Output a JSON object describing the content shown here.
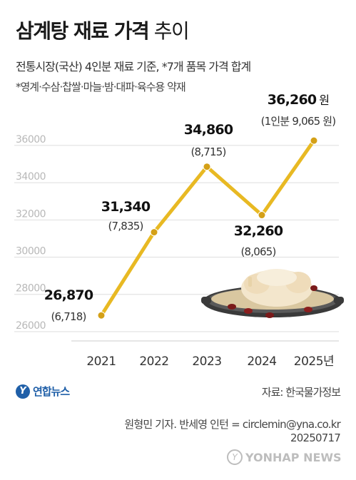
{
  "header": {
    "title_main": "삼계탕 재료 가격",
    "title_suffix": " 추이",
    "subtitle": "전통시장(국산) 4인분 재료 기준, *7개 품목 가격 합계",
    "note": "*영계·수삼·찹쌀·마늘·밤·대파·육수용 약재"
  },
  "chart_data": {
    "type": "line",
    "categories": [
      "2021",
      "2022",
      "2023",
      "2024",
      "2025년"
    ],
    "series": [
      {
        "values": [
          26870,
          31340,
          34860,
          32260,
          36260
        ],
        "value_labels": [
          "26,870",
          "31,340",
          "34,860",
          "32,260",
          "36,260"
        ],
        "value_units": [
          "",
          "",
          "",
          "",
          "원"
        ],
        "per_person_labels": [
          "(6,718)",
          "(7,835)",
          "(8,715)",
          "(8,065)",
          "(1인분 9,065 원)"
        ]
      }
    ],
    "yticks": [
      26000,
      28000,
      30000,
      32000,
      34000,
      36000
    ],
    "ytick_labels": [
      "26000",
      "28000",
      "30000",
      "32000",
      "34000",
      "36000"
    ],
    "ylim": [
      25500,
      37300
    ],
    "grid": true,
    "line_color": "#e8b923"
  },
  "footer": {
    "logo_glyph": "Y",
    "logo_name": "연합뉴스",
    "source": "자료: 한국물가정보",
    "credit_line1": "원형민 기자. 반세영 인턴 = circlemin@yna.co.kr",
    "credit_line2": "20250717",
    "watermark_glyph": "Y",
    "watermark_name": "YONHAP NEWS"
  },
  "colors": {
    "line": "#e8b923",
    "marker": "#d4a017",
    "grid": "#dddddd",
    "axis_text": "#bbbbbb",
    "brand": "#1f5fa8"
  },
  "icons": {
    "illustration": "samgyetang-pot-icon"
  }
}
